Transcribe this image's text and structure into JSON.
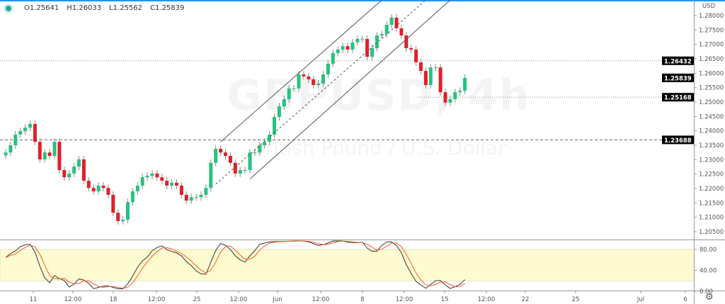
{
  "legend": {
    "open": "O1.25641",
    "high": "H1.26033",
    "low": "L1.25562",
    "close": "C1.25839",
    "status_color": "#26a69a"
  },
  "watermark": {
    "symbol": "GBPUSD, 4h",
    "description": "British Pound / U.S. Dollar"
  },
  "settings_icon": "gear-icon",
  "chart_data": [
    {
      "type": "candlestick",
      "currency": "USD",
      "ylim": [
        1.2035,
        1.2854
      ],
      "y_ticks": [
        "1.28000",
        "1.27500",
        "1.27000",
        "1.26500",
        "1.26000",
        "1.25500",
        "1.25000",
        "1.24500",
        "1.24000",
        "1.23500",
        "1.23000",
        "1.22500",
        "1.22000",
        "1.21500",
        "1.21000",
        "1.20500"
      ],
      "x_ticks": [
        "11",
        "12:00",
        "18",
        "12:00",
        "25",
        "12:00",
        "Jun",
        "12:00",
        "8",
        "12:00",
        "15",
        "12:00",
        "22",
        "25",
        "Jul",
        "6"
      ],
      "grid": false,
      "first_open": 1.2315,
      "closes": [
        1.2325,
        1.235,
        1.2387,
        1.2399,
        1.2411,
        1.2424,
        1.2362,
        1.2301,
        1.2325,
        1.2313,
        1.2362,
        1.2264,
        1.2239,
        1.2252,
        1.2276,
        1.2301,
        1.2227,
        1.2202,
        1.219,
        1.221,
        1.2202,
        1.2178,
        1.2116,
        1.2087,
        1.2092,
        1.2153,
        1.219,
        1.221,
        1.2239,
        1.2244,
        1.2252,
        1.2239,
        1.2227,
        1.221,
        1.222,
        1.221,
        1.2178,
        1.2158,
        1.217,
        1.217,
        1.2178,
        1.2202,
        1.2289,
        1.2338,
        1.2325,
        1.2313,
        1.2289,
        1.2252,
        1.2264,
        1.2264,
        1.2325,
        1.2325,
        1.235,
        1.2362,
        1.2387,
        1.2448,
        1.2485,
        1.251,
        1.2547,
        1.2547,
        1.2596,
        1.2589,
        1.2579,
        1.2559,
        1.2564,
        1.2596,
        1.2633,
        1.267,
        1.2682,
        1.2694,
        1.2682,
        1.2707,
        1.2719,
        1.2719,
        1.2657,
        1.2687,
        1.2731,
        1.2736,
        1.2768,
        1.2793,
        1.2756,
        1.2731,
        1.2687,
        1.2682,
        1.2638,
        1.2608,
        1.2559,
        1.262,
        1.262,
        1.2534,
        1.2498,
        1.251,
        1.2534,
        1.2539,
        1.25839
      ],
      "price_labels": [
        {
          "value": "1.26432",
          "price": 1.26432,
          "style": "dotted"
        },
        {
          "value": "1.25839",
          "price": 1.25839,
          "style": "none"
        },
        {
          "value": "1.25168",
          "price": 1.25168,
          "style": "dotted"
        },
        {
          "value": "1.23688",
          "price": 1.23688,
          "style": "dashed"
        }
      ],
      "channel": {
        "upper": [
          [
            44,
            1.2362
          ],
          [
            77,
            1.2854
          ]
        ],
        "middle": [
          [
            43,
            1.2215
          ],
          [
            86,
            1.2854
          ]
        ],
        "lower": [
          [
            50,
            1.2233
          ],
          [
            91,
            1.2854
          ]
        ]
      },
      "colors": {
        "up": "#26c281",
        "down": "#e0202a",
        "k_line": "#333333",
        "d_line": "#ff5722",
        "band": "#fffbd0"
      }
    },
    {
      "type": "line",
      "indicator": "stochastic",
      "ylim": [
        0,
        100
      ],
      "band": [
        20,
        80
      ],
      "y_ticks": [
        "80.00",
        "40.00",
        "0.00"
      ]
    }
  ]
}
